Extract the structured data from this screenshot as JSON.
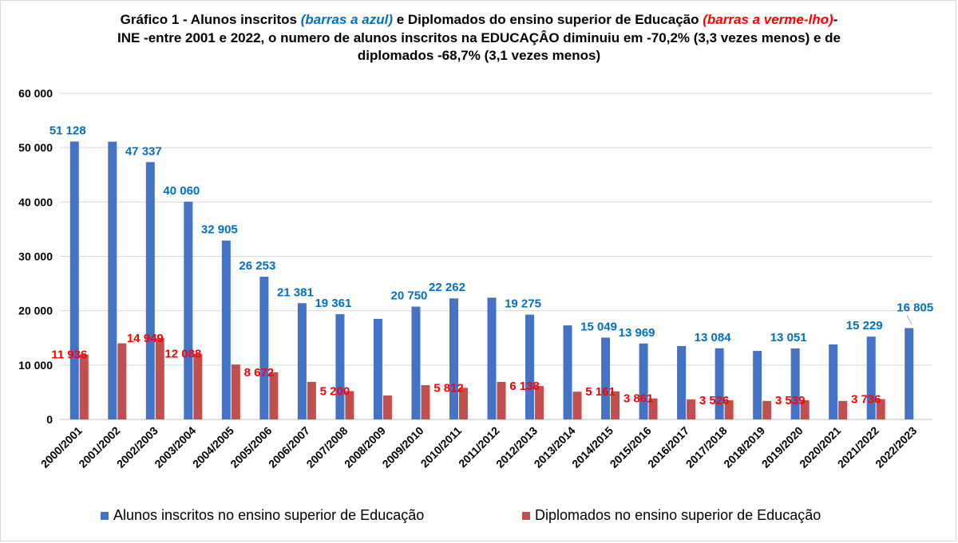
{
  "title": {
    "line1_prefix": "Gráfico 1 - Alunos inscritos ",
    "line1_blue": "(barras a azul)",
    "line1_middle": " e Diplomados do ensino superior de Educação ",
    "line1_red": "(barras a verme-lho)",
    "line1_suffix": "-",
    "line2": "INE -entre 2001 e 2022, o numero de alunos inscritos na EDUCAÇÂO diminuiu em -70,2% (3,3 vezes menos) e de",
    "line3": "diplomados -68,7% (3,1 vezes menos)"
  },
  "colors": {
    "enrolled": "#4472c4",
    "graduates": "#c0504d",
    "enrolled_label": "#0070c0",
    "graduates_label": "#ff0000",
    "gridline": "#d9d9d9"
  },
  "chart_data": {
    "type": "bar",
    "ylim": [
      0,
      60000
    ],
    "y_ticks": [
      "0",
      "10 000",
      "20 000",
      "30 000",
      "40 000",
      "50 000",
      "60 000"
    ],
    "grid": true,
    "legend_position": "bottom",
    "categories": [
      "2000/2001",
      "2001/2002",
      "2002/2003",
      "2003/2004",
      "2004/2005",
      "2005/2006",
      "2006/2007",
      "2007/2008",
      "2008/2009",
      "2009/2010",
      "2010/2011",
      "2011/2012",
      "2012/2013",
      "2013/2014",
      "2014/2015",
      "2015/2016",
      "2016/2017",
      "2017/2018",
      "2018/2019",
      "2019/2020",
      "2020/2021",
      "2021/2022",
      "2022/2023"
    ],
    "series": [
      {
        "name": "Alunos inscritos no ensino superior de Educação",
        "values": [
          51128,
          51100,
          47337,
          40060,
          32905,
          26253,
          21381,
          19361,
          18500,
          20750,
          22262,
          22400,
          19275,
          17300,
          15049,
          13969,
          13500,
          13084,
          12600,
          13051,
          13800,
          15229,
          16805
        ],
        "labels": [
          "51 128",
          "",
          "47 337",
          "40 060",
          "32 905",
          "26 253",
          "21 381",
          "19 361",
          "",
          "20 750",
          "22 262",
          "",
          "19 275",
          "",
          "15 049",
          "13 969",
          "",
          "13 084",
          "",
          "13 051",
          "",
          "15 229",
          "16 805"
        ]
      },
      {
        "name": "Diplomados no ensino superior de Educação",
        "values": [
          11936,
          14000,
          14949,
          12088,
          10100,
          8672,
          6900,
          5200,
          4400,
          6300,
          5812,
          6900,
          6138,
          5100,
          5161,
          3861,
          3700,
          3526,
          3400,
          3539,
          3400,
          3736,
          0
        ],
        "labels": [
          "11 936",
          "",
          "14 949",
          "12 088",
          "",
          "8 672",
          "",
          "5 200",
          "",
          "",
          "5 812",
          "",
          "6 138",
          "",
          "5 161",
          "3 861",
          "",
          "3 526",
          "",
          "3 539",
          "",
          "3 736",
          ""
        ]
      }
    ]
  }
}
